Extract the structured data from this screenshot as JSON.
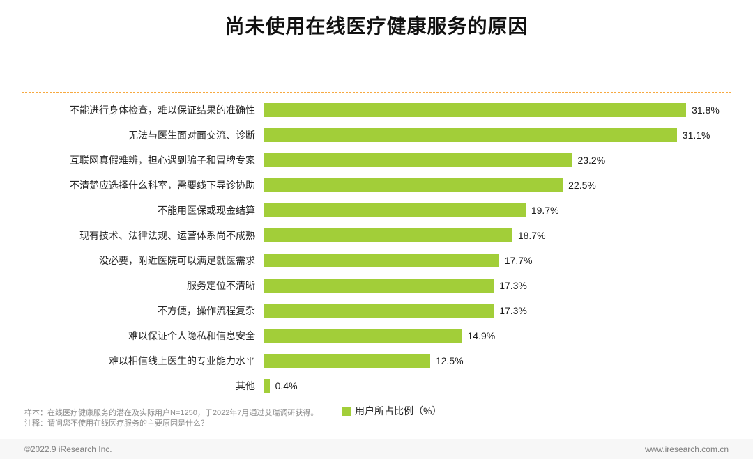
{
  "title": "尚未使用在线医疗健康服务的原因",
  "chart_data": {
    "type": "bar",
    "orientation": "horizontal",
    "title": "尚未使用在线医疗健康服务的原因",
    "categories": [
      "不能进行身体检查，难以保证结果的准确性",
      "无法与医生面对面交流、诊断",
      "互联网真假难辨，担心遇到骗子和冒牌专家",
      "不清楚应选择什么科室，需要线下导诊协助",
      "不能用医保或现金结算",
      "现有技术、法律法规、运营体系尚不成熟",
      "没必要，附近医院可以满足就医需求",
      "服务定位不清晰",
      "不方便，操作流程复杂",
      "难以保证个人隐私和信息安全",
      "难以相信线上医生的专业能力水平",
      "其他"
    ],
    "values": [
      31.8,
      31.1,
      23.2,
      22.5,
      19.7,
      18.7,
      17.7,
      17.3,
      17.3,
      14.9,
      12.5,
      0.4
    ],
    "value_labels": [
      "31.8%",
      "31.1%",
      "23.2%",
      "22.5%",
      "19.7%",
      "18.7%",
      "17.7%",
      "17.3%",
      "17.3%",
      "14.9%",
      "12.5%",
      "0.4%"
    ],
    "legend": "用户所占比例（%）",
    "legend_position": "bottom",
    "bar_color": "#a2ce39",
    "highlight_box_color": "#f7a940",
    "highlighted_rows": [
      0,
      1
    ],
    "xlim": [
      0,
      35
    ],
    "grid": false
  },
  "notes": {
    "sample": "样本：在线医疗健康服务的潜在及实际用户N=1250，于2022年7月通过艾瑞调研获得。",
    "annotation": "注释：请问您不使用在线医疗服务的主要原因是什么？"
  },
  "footer": {
    "copyright": "©2022.9 iResearch Inc.",
    "website": "www.iresearch.com.cn"
  }
}
